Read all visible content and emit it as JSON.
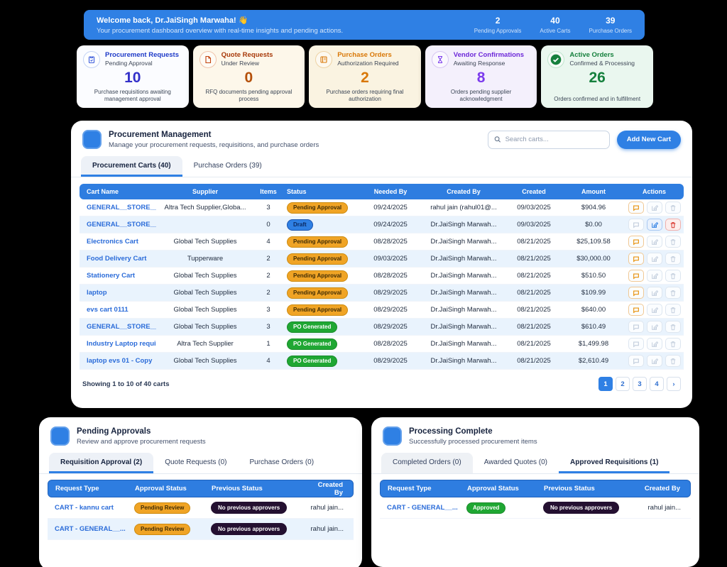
{
  "banner": {
    "title": "Welcome back, Dr.JaiSingh Marwaha! 👋",
    "subtitle": "Your procurement dashboard overview with real-time insights and pending actions.",
    "stats": [
      {
        "value": "2",
        "label": "Pending Approvals"
      },
      {
        "value": "40",
        "label": "Active Carts"
      },
      {
        "value": "39",
        "label": "Purchase Orders"
      }
    ]
  },
  "cards": [
    {
      "title": "Procurement Requests",
      "subtitle": "Pending Approval",
      "value": "10",
      "description": "Purchase requisitions awaiting management approval",
      "icon": "clipboard-check-icon",
      "accent": "#1e3ac8",
      "number_color": "#3330c9",
      "bg": "#fbfcff",
      "ring": "#c4d3f5"
    },
    {
      "title": "Quote Requests",
      "subtitle": "Under Review",
      "value": "0",
      "description": "RFQ documents pending approval process",
      "icon": "file-icon",
      "accent": "#a83a0a",
      "number_color": "#b4500a",
      "bg": "#fdf7ea",
      "ring": "#f0c4ab"
    },
    {
      "title": "Purchase Orders",
      "subtitle": "Authorization Required",
      "value": "2",
      "description": "Purchase orders requiring final authorization",
      "icon": "book-icon",
      "accent": "#d97706",
      "number_color": "#d97706",
      "bg": "#faf3e1",
      "ring": "#eed3a5"
    },
    {
      "title": "Vendor Confirmations",
      "subtitle": "Awaiting Response",
      "value": "8",
      "description": "Orders pending supplier acknowledgment",
      "icon": "hourglass-icon",
      "accent": "#6d28d9",
      "number_color": "#7c3aed",
      "bg": "#f4f0fc",
      "ring": "#d6c5f3"
    },
    {
      "title": "Active Orders",
      "subtitle": "Confirmed & Processing",
      "value": "26",
      "description": "Orders confirmed and in fulfillment",
      "icon": "check-circle-icon",
      "accent": "#15803d",
      "number_color": "#15803d",
      "bg": "#eaf7ef",
      "ring": "#bfe5cd"
    }
  ],
  "main_panel": {
    "title": "Procurement Management",
    "subtitle": "Manage your procurement requests, requisitions, and purchase orders",
    "search_placeholder": "Search carts...",
    "add_button": "Add New Cart",
    "tabs": [
      {
        "label": "Procurement Carts (40)"
      },
      {
        "label": "Purchase Orders (39)"
      }
    ],
    "table": {
      "headers": [
        "Cart Name",
        "Supplier",
        "Items",
        "Status",
        "Needed By",
        "Created By",
        "Created",
        "Amount",
        "Actions"
      ],
      "rows": [
        {
          "cart_name": "GENERAL__STORE__C...",
          "supplier": "Altra Tech Supplier,Globa...",
          "items": "3",
          "status": "Pending Approval",
          "status_type": "pending",
          "needed_by": "09/24/2025",
          "created_by": "rahul jain (rahul01@...",
          "created": "09/03/2025",
          "amount": "$904.96",
          "actions": {
            "chat": true,
            "edit": false,
            "delete": false
          }
        },
        {
          "cart_name": "GENERAL__STORE__C...",
          "supplier": "",
          "items": "0",
          "status": "Draft",
          "status_type": "draft",
          "needed_by": "09/24/2025",
          "created_by": "Dr.JaiSingh Marwah...",
          "created": "09/03/2025",
          "amount": "$0.00",
          "actions": {
            "chat": false,
            "edit": true,
            "delete": true
          }
        },
        {
          "cart_name": "Electronics Cart",
          "supplier": "Global Tech Supplies",
          "items": "4",
          "status": "Pending Approval",
          "status_type": "pending",
          "needed_by": "08/28/2025",
          "created_by": "Dr.JaiSingh Marwah...",
          "created": "08/21/2025",
          "amount": "$25,109.58",
          "actions": {
            "chat": true,
            "edit": false,
            "delete": false
          }
        },
        {
          "cart_name": "Food Delivery Cart",
          "supplier": "Tupperware",
          "items": "2",
          "status": "Pending Approval",
          "status_type": "pending",
          "needed_by": "09/03/2025",
          "created_by": "Dr.JaiSingh Marwah...",
          "created": "08/21/2025",
          "amount": "$30,000.00",
          "actions": {
            "chat": true,
            "edit": false,
            "delete": false
          }
        },
        {
          "cart_name": "Stationery Cart",
          "supplier": "Global Tech Supplies",
          "items": "2",
          "status": "Pending Approval",
          "status_type": "pending",
          "needed_by": "08/28/2025",
          "created_by": "Dr.JaiSingh Marwah...",
          "created": "08/21/2025",
          "amount": "$510.50",
          "actions": {
            "chat": true,
            "edit": false,
            "delete": false
          }
        },
        {
          "cart_name": "laptop",
          "supplier": "Global Tech Supplies",
          "items": "2",
          "status": "Pending Approval",
          "status_type": "pending",
          "needed_by": "08/29/2025",
          "created_by": "Dr.JaiSingh Marwah...",
          "created": "08/21/2025",
          "amount": "$109.99",
          "actions": {
            "chat": true,
            "edit": false,
            "delete": false
          }
        },
        {
          "cart_name": "evs cart 0111",
          "supplier": "Global Tech Supplies",
          "items": "3",
          "status": "Pending Approval",
          "status_type": "pending",
          "needed_by": "08/29/2025",
          "created_by": "Dr.JaiSingh Marwah...",
          "created": "08/21/2025",
          "amount": "$640.00",
          "actions": {
            "chat": true,
            "edit": false,
            "delete": false
          }
        },
        {
          "cart_name": "GENERAL__STORE__C...",
          "supplier": "Global Tech Supplies",
          "items": "3",
          "status": "PO Generated",
          "status_type": "po",
          "needed_by": "08/29/2025",
          "created_by": "Dr.JaiSingh Marwah...",
          "created": "08/21/2025",
          "amount": "$610.49",
          "actions": {
            "chat": false,
            "edit": false,
            "delete": false
          }
        },
        {
          "cart_name": "Industry Laptop requi...",
          "supplier": "Altra Tech Supplier",
          "items": "1",
          "status": "PO Generated",
          "status_type": "po",
          "needed_by": "08/28/2025",
          "created_by": "Dr.JaiSingh Marwah...",
          "created": "08/21/2025",
          "amount": "$1,499.98",
          "actions": {
            "chat": false,
            "edit": false,
            "delete": false
          }
        },
        {
          "cart_name": "laptop evs 01 - Copy",
          "supplier": "Global Tech Supplies",
          "items": "4",
          "status": "PO Generated",
          "status_type": "po",
          "needed_by": "08/29/2025",
          "created_by": "Dr.JaiSingh Marwah...",
          "created": "08/21/2025",
          "amount": "$2,610.49",
          "actions": {
            "chat": false,
            "edit": false,
            "delete": false
          }
        }
      ]
    },
    "footer": {
      "showing": "Showing 1 to 10 of 40 carts",
      "pages": [
        "1",
        "2",
        "3",
        "4",
        "›"
      ],
      "active_page": "1"
    }
  },
  "pending_panel": {
    "title": "Pending Approvals",
    "subtitle": "Review and approve procurement requests",
    "tabs": [
      {
        "label": "Requisition Approval (2)"
      },
      {
        "label": "Quote Requests (0)"
      },
      {
        "label": "Purchase Orders (0)"
      }
    ],
    "headers": [
      "Request Type",
      "Approval Status",
      "Previous Status",
      "Created By"
    ],
    "rows": [
      {
        "request_type": "CART - kannu cart",
        "approval_status": "Pending Review",
        "approval_type": "review",
        "previous_status": "No previous approvers",
        "created_by": "rahul jain..."
      },
      {
        "request_type": "CART - GENERAL__...",
        "approval_status": "Pending Review",
        "approval_type": "review",
        "previous_status": "No previous approvers",
        "created_by": "rahul jain..."
      }
    ]
  },
  "complete_panel": {
    "title": "Processing Complete",
    "subtitle": "Successfully processed procurement items",
    "tabs": [
      {
        "label": "Completed Orders (0)"
      },
      {
        "label": "Awarded Quotes (0)"
      },
      {
        "label": "Approved Requisitions (1)"
      }
    ],
    "headers": [
      "Request Type",
      "Approval Status",
      "Previous Status",
      "Created By"
    ],
    "rows": [
      {
        "request_type": "CART - GENERAL__...",
        "approval_status": "Approved",
        "approval_type": "approved",
        "previous_status": "No previous approvers",
        "created_by": "rahul jain..."
      }
    ]
  }
}
